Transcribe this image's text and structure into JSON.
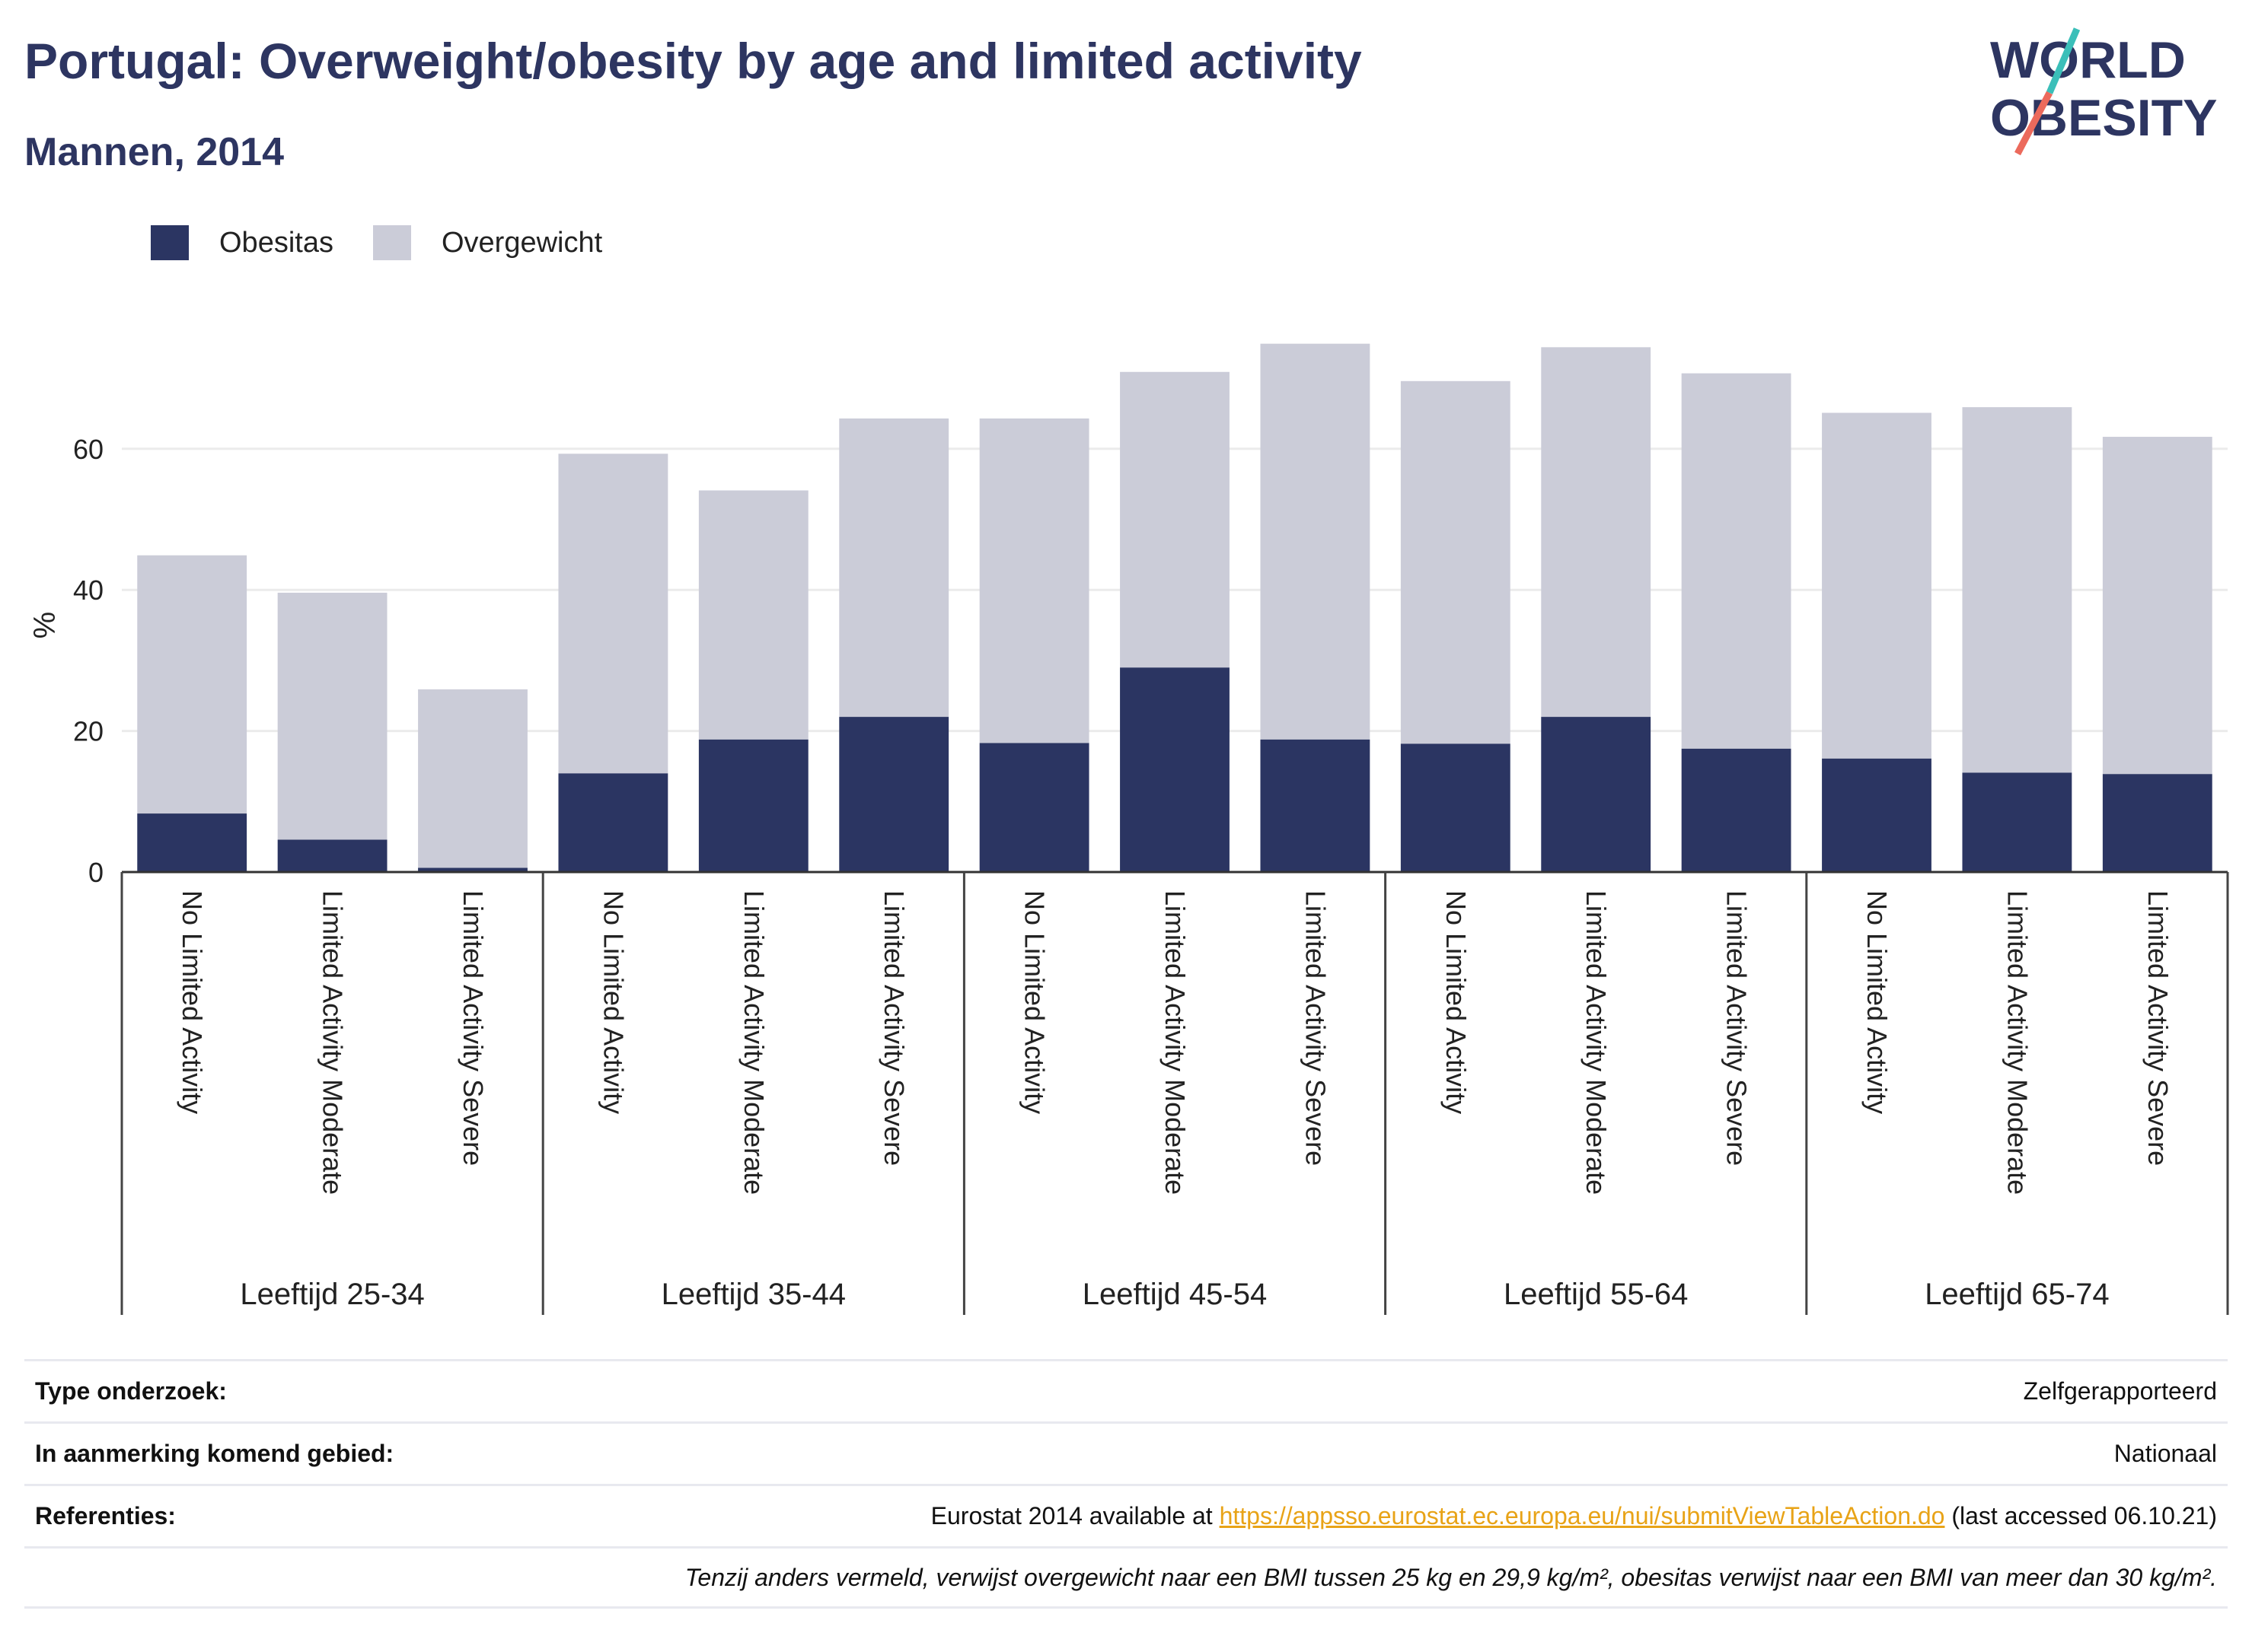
{
  "header": {
    "title": "Portugal: Overweight/obesity by age and limited activity",
    "subtitle": "Mannen, 2014"
  },
  "logo": {
    "line1": "WORLD",
    "line2": "OBESITY"
  },
  "colors": {
    "obesity": "#2b3562",
    "overweight": "#cbccd8",
    "accent_teal": "#3bbfb9",
    "accent_coral": "#ec6a5c",
    "brand": "#2d3561"
  },
  "legend": [
    {
      "label": "Obesitas",
      "color": "#2b3562"
    },
    {
      "label": "Overgewicht",
      "color": "#cbccd8"
    }
  ],
  "chart_data": {
    "type": "bar",
    "stacked": true,
    "ylabel": "%",
    "ylim": [
      0,
      80
    ],
    "yticks": [
      0,
      20,
      40,
      60
    ],
    "grid": true,
    "legend_position": "top-left",
    "groups": [
      "Leeftijd 25-34",
      "Leeftijd 35-44",
      "Leeftijd 45-54",
      "Leeftijd 55-64",
      "Leeftijd 65-74"
    ],
    "subcategories": [
      "No Limited Activity",
      "Limited Activity Moderate",
      "Limited Activity Severe"
    ],
    "series": [
      {
        "name": "Obesitas",
        "values": [
          8.3,
          4.6,
          0.6,
          14.0,
          18.8,
          22.0,
          18.3,
          29.0,
          18.8,
          18.2,
          22.0,
          17.5,
          16.1,
          14.1,
          13.9
        ]
      },
      {
        "name": "Overgewicht",
        "values": [
          36.6,
          35.0,
          25.3,
          45.3,
          35.3,
          42.3,
          46.0,
          41.9,
          56.1,
          51.4,
          52.4,
          53.2,
          49.0,
          51.8,
          47.8
        ]
      }
    ]
  },
  "info": {
    "survey_label": "Type onderzoek:",
    "survey_value": "Zelfgerapporteerd",
    "area_label": "In aanmerking komend gebied:",
    "area_value": "Nationaal",
    "ref_label": "Referenties:",
    "ref_prefix": "Eurostat 2014 available at ",
    "ref_link": "https://appsso.eurostat.ec.europa.eu/nui/submitViewTableAction.do",
    "ref_suffix": " (last accessed 06.10.21)",
    "note": "Tenzij anders vermeld, verwijst overgewicht naar een BMI tussen 25 kg en 29,9 kg/m², obesitas verwijst naar een BMI van meer dan 30 kg/m²."
  }
}
